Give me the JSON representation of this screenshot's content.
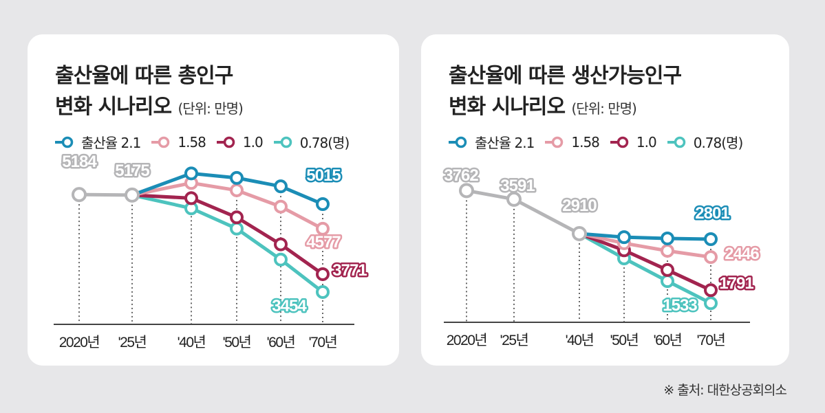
{
  "colors": {
    "common": "#b5b5b7",
    "s21": "#1b8db6",
    "s158": "#e59ba6",
    "s10": "#a2244f",
    "s078": "#4dc3be",
    "background": "#e7e7e9"
  },
  "legend": [
    "출산율 2.1",
    "1.58",
    "1.0",
    "0.78(명)"
  ],
  "source": "※ 출처: 대한상공회의소",
  "chart_data": [
    {
      "type": "line",
      "title": "출산율에 따른 총인구 변화 시나리오",
      "unit": "(단위: 만명)",
      "categories": [
        "2020년",
        "'25년",
        "'40년",
        "'50년",
        "'60년",
        "'70년"
      ],
      "grid": false,
      "legend_position": "top-left",
      "common": {
        "values": [
          5184,
          5175,
          null,
          null,
          null,
          null
        ],
        "labels": [
          "5184",
          "5175"
        ]
      },
      "series": [
        {
          "name": "출산율 2.1",
          "values": [
            null,
            5175,
            5560,
            5480,
            5330,
            5015
          ],
          "label": "5015"
        },
        {
          "name": "1.58",
          "values": [
            null,
            5175,
            5390,
            5260,
            4970,
            4577
          ],
          "label": "4577"
        },
        {
          "name": "1.0",
          "values": [
            null,
            5175,
            5120,
            4780,
            4300,
            3771
          ],
          "label": "3771"
        },
        {
          "name": "0.78(명)",
          "values": [
            null,
            5175,
            4940,
            4580,
            4030,
            3454
          ],
          "label": "3454"
        }
      ]
    },
    {
      "type": "line",
      "title": "출산율에 따른 생산가능인구 변화 시나리오",
      "unit": "(단위: 만명)",
      "categories": [
        "2020년",
        "'25년",
        "'40년",
        "'50년",
        "'60년",
        "'70년"
      ],
      "grid": false,
      "legend_position": "top-left",
      "common": {
        "values": [
          3762,
          3591,
          2910,
          null,
          null,
          null
        ],
        "labels": [
          "3762",
          "3591",
          "2910"
        ]
      },
      "series": [
        {
          "name": "출산율 2.1",
          "values": [
            null,
            null,
            2910,
            2840,
            2815,
            2801
          ],
          "label": "2801"
        },
        {
          "name": "1.58",
          "values": [
            null,
            null,
            2910,
            2720,
            2570,
            2446
          ],
          "label": "2446"
        },
        {
          "name": "1.0",
          "values": [
            null,
            null,
            2910,
            2580,
            2190,
            1791
          ],
          "label": "1791"
        },
        {
          "name": "0.78(명)",
          "values": [
            null,
            null,
            2910,
            2420,
            1970,
            1533
          ],
          "label": "1533"
        }
      ]
    }
  ],
  "titles": [
    {
      "line1": "출산율에 따른 총인구",
      "line2": "변화 시나리오",
      "unit": "(단위: 만명)"
    },
    {
      "line1": "출산율에 따른 생산가능인구",
      "line2": "변화 시나리오",
      "unit": "(단위: 만명)"
    }
  ]
}
